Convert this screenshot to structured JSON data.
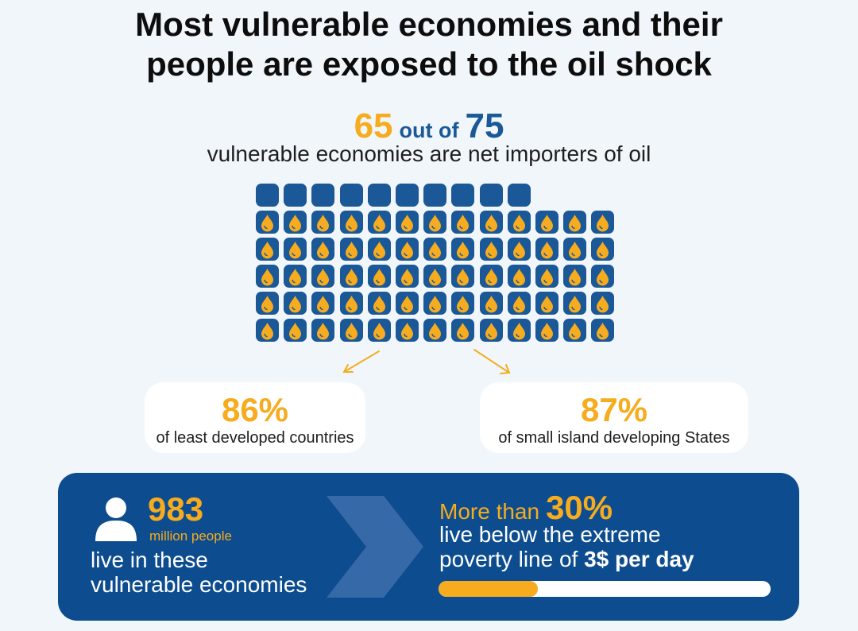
{
  "title": {
    "line1": "Most vulnerable economies and their",
    "line2": "people are exposed to the oil shock"
  },
  "headline": {
    "count": "65",
    "connector": "out of",
    "total": "75",
    "subtitle": "vulnerable economies are net importers of oil"
  },
  "waffle": {
    "total": 75,
    "importers": 65,
    "icon": "oil-drop-icon",
    "color_cell": "#1b5897",
    "color_drop": "#f6ac1e"
  },
  "cards": [
    {
      "value": "86%",
      "label": "of least developed countries"
    },
    {
      "value": "87%",
      "label": "of small island developing States"
    }
  ],
  "people": {
    "icon": "person-icon",
    "value": "983",
    "unit": "million people",
    "text1": "live in these",
    "text2": "vulnerable economies"
  },
  "poverty": {
    "prefix": "More than",
    "value": "30%",
    "line1": "live below the extreme",
    "line2_prefix": "poverty line of",
    "line2_emph": "3$ per day",
    "share": 0.3
  },
  "colors": {
    "accent": "#f6ac1e",
    "brand": "#1b5897",
    "panel": "#0d4d8f",
    "background": "#f1f6fb"
  }
}
